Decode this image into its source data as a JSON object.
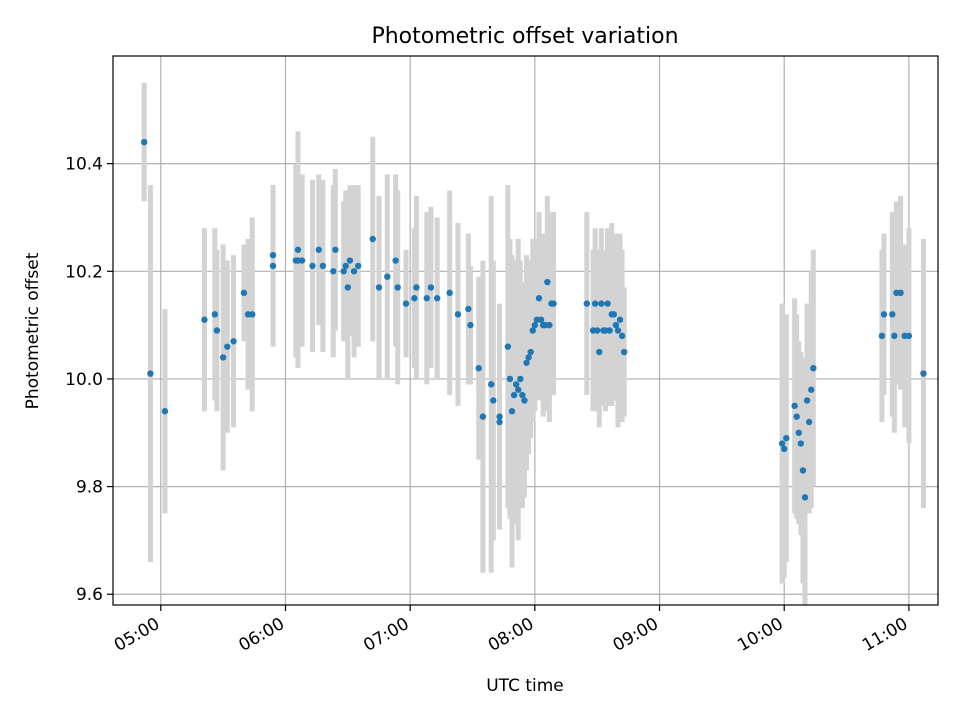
{
  "chart_data": {
    "type": "scatter",
    "title": "Photometric offset variation",
    "xlabel": "UTC time",
    "ylabel": "Photometric offset",
    "xlim": [
      "04:37",
      "11:14"
    ],
    "ylim": [
      9.58,
      10.6
    ],
    "grid": true,
    "error_bar_color": "#d3d3d3",
    "point_color": "#1f77b4",
    "xticks": [
      "05:00",
      "06:00",
      "07:00",
      "08:00",
      "09:00",
      "10:00",
      "11:00"
    ],
    "yticks": [
      9.6,
      9.8,
      10.0,
      10.2,
      10.4
    ],
    "ytick_labels": [
      "9.6",
      "9.8",
      "10.0",
      "10.2",
      "10.4"
    ],
    "series": [
      {
        "x": [
          "04:52",
          "04:55",
          "05:02",
          "05:21",
          "05:26",
          "05:27",
          "05:30",
          "05:32",
          "05:35",
          "05:40",
          "05:42",
          "05:44",
          "05:54",
          "05:54",
          "06:05",
          "06:06",
          "06:06",
          "06:08",
          "06:13",
          "06:16",
          "06:18",
          "06:23",
          "06:24",
          "06:28",
          "06:29",
          "06:30",
          "06:31",
          "06:33",
          "06:35",
          "06:42",
          "06:45",
          "06:49",
          "06:53",
          "06:54",
          "06:58",
          "07:02",
          "07:03",
          "07:08",
          "07:10",
          "07:13",
          "07:19",
          "07:23",
          "07:28",
          "07:29",
          "07:33",
          "07:35",
          "07:39",
          "07:40",
          "07:43",
          "07:43",
          "07:47",
          "07:48",
          "07:49",
          "07:50",
          "07:51",
          "07:52",
          "07:53",
          "07:54",
          "07:55",
          "07:56",
          "07:57",
          "07:58",
          "07:59",
          "08:00",
          "08:01",
          "08:02",
          "08:03",
          "08:04",
          "08:05",
          "08:06",
          "08:07",
          "08:08",
          "08:09",
          "08:25",
          "08:28",
          "08:29",
          "08:30",
          "08:31",
          "08:32",
          "08:33",
          "08:34",
          "08:35",
          "08:36",
          "08:37",
          "08:38",
          "08:39",
          "08:40",
          "08:41",
          "08:42",
          "08:43",
          "09:59",
          "10:00",
          "10:01",
          "10:05",
          "10:06",
          "10:07",
          "10:08",
          "10:09",
          "10:10",
          "10:11",
          "10:12",
          "10:13",
          "10:14",
          "10:47",
          "10:48",
          "10:52",
          "10:53",
          "10:54",
          "10:56",
          "10:58",
          "11:00",
          "11:07"
        ],
        "y": [
          10.44,
          10.01,
          9.94,
          10.11,
          10.12,
          10.09,
          10.04,
          10.06,
          10.07,
          10.16,
          10.12,
          10.12,
          10.21,
          10.23,
          10.22,
          10.22,
          10.24,
          10.22,
          10.21,
          10.24,
          10.21,
          10.2,
          10.24,
          10.2,
          10.21,
          10.17,
          10.22,
          10.2,
          10.21,
          10.26,
          10.17,
          10.19,
          10.22,
          10.17,
          10.14,
          10.15,
          10.17,
          10.15,
          10.17,
          10.15,
          10.16,
          10.12,
          10.13,
          10.1,
          10.02,
          9.93,
          9.99,
          9.96,
          9.92,
          9.93,
          10.06,
          10.0,
          9.94,
          9.97,
          9.99,
          9.98,
          10.0,
          9.97,
          9.96,
          10.03,
          10.04,
          10.05,
          10.09,
          10.1,
          10.11,
          10.15,
          10.11,
          10.1,
          10.1,
          10.18,
          10.1,
          10.14,
          10.14,
          10.14,
          10.09,
          10.14,
          10.09,
          10.05,
          10.14,
          10.09,
          10.09,
          10.14,
          10.09,
          10.12,
          10.12,
          10.1,
          10.09,
          10.11,
          10.08,
          10.05,
          9.88,
          9.87,
          9.89,
          9.95,
          9.93,
          9.9,
          9.88,
          9.83,
          9.78,
          9.96,
          9.92,
          9.98,
          10.02,
          10.08,
          10.12,
          10.12,
          10.08,
          10.16,
          10.16,
          10.08,
          10.08,
          10.01
        ],
        "yerr": [
          0.11,
          0.35,
          0.19,
          0.17,
          0.16,
          0.15,
          0.21,
          0.16,
          0.16,
          0.09,
          0.14,
          0.18,
          0.15,
          0.13,
          0.18,
          0.18,
          0.22,
          0.16,
          0.16,
          0.14,
          0.16,
          0.16,
          0.15,
          0.13,
          0.14,
          0.17,
          0.14,
          0.16,
          0.15,
          0.19,
          0.17,
          0.19,
          0.16,
          0.18,
          0.1,
          0.13,
          0.17,
          0.16,
          0.15,
          0.15,
          0.19,
          0.17,
          0.14,
          0.11,
          0.17,
          0.29,
          0.35,
          0.26,
          0.19,
          0.21,
          0.3,
          0.26,
          0.29,
          0.24,
          0.23,
          0.28,
          0.22,
          0.21,
          0.18,
          0.2,
          0.18,
          0.16,
          0.17,
          0.16,
          0.15,
          0.16,
          0.15,
          0.17,
          0.16,
          0.16,
          0.18,
          0.17,
          0.17,
          0.17,
          0.15,
          0.14,
          0.15,
          0.14,
          0.14,
          0.14,
          0.15,
          0.14,
          0.14,
          0.17,
          0.15,
          0.14,
          0.18,
          0.16,
          0.16,
          0.12,
          0.26,
          0.24,
          0.23,
          0.2,
          0.19,
          0.17,
          0.17,
          0.21,
          0.2,
          0.18,
          0.17,
          0.22,
          0.22,
          0.16,
          0.15,
          0.19,
          0.18,
          0.17,
          0.18,
          0.17,
          0.2,
          0.25
        ]
      }
    ]
  }
}
